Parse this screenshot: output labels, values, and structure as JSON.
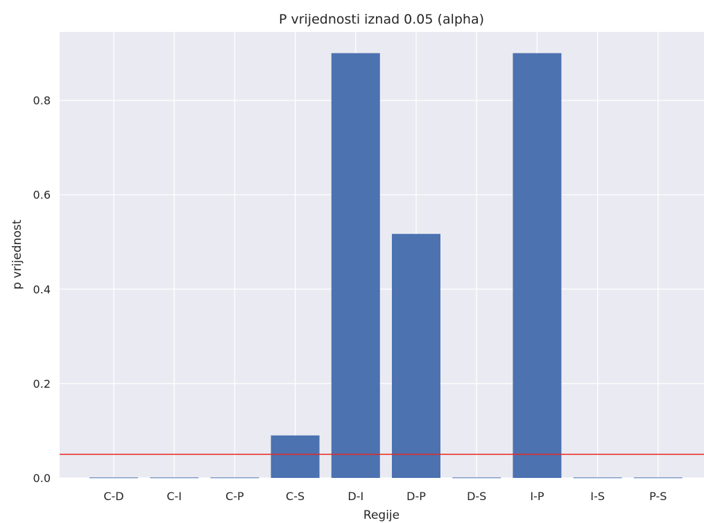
{
  "chart_data": {
    "type": "bar",
    "title": "P vrijednosti iznad 0.05 (alpha)",
    "xlabel": "Regije",
    "ylabel": "p vrijednost",
    "categories": [
      "C-D",
      "C-I",
      "C-P",
      "C-S",
      "D-I",
      "D-P",
      "D-S",
      "I-P",
      "I-S",
      "P-S"
    ],
    "values": [
      0.001,
      0.001,
      0.001,
      0.09,
      0.9,
      0.517,
      0.001,
      0.9,
      0.001,
      0.001
    ],
    "ylim": [
      0,
      0.945
    ],
    "yticks": [
      0.0,
      0.2,
      0.4,
      0.6,
      0.8
    ],
    "ytick_labels": [
      "0.0",
      "0.2",
      "0.4",
      "0.6",
      "0.8"
    ],
    "threshold": {
      "value": 0.05,
      "color": "#e8271e"
    },
    "grid": true,
    "colors": {
      "bar": "#4c72b0",
      "background": "#eaeaf2",
      "grid": "#ffffff"
    }
  }
}
